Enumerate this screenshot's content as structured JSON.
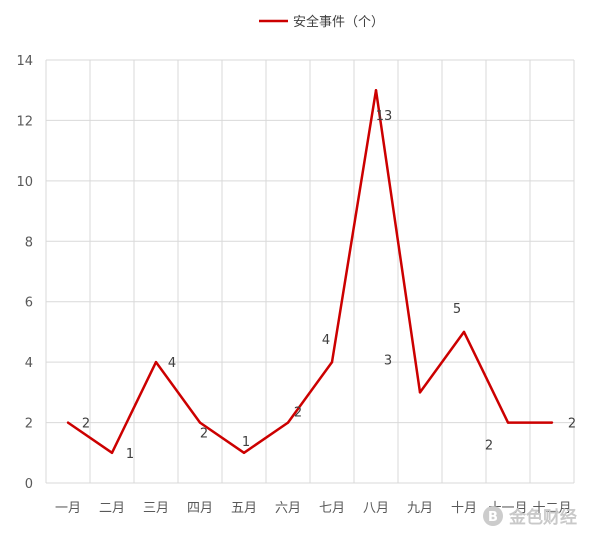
{
  "chart_data": {
    "type": "line",
    "categories": [
      "一月",
      "二月",
      "三月",
      "四月",
      "五月",
      "六月",
      "七月",
      "八月",
      "九月",
      "十月",
      "十一月",
      "十二月"
    ],
    "series": [
      {
        "name": "安全事件（个）",
        "values": [
          2,
          1,
          4,
          2,
          1,
          2,
          4,
          13,
          3,
          5,
          2,
          2
        ],
        "color": "#cc0000"
      }
    ],
    "ylim": [
      0,
      14
    ],
    "yticks": [
      0,
      2,
      4,
      6,
      8,
      10,
      12,
      14
    ],
    "grid": true,
    "legend_position": "top"
  },
  "watermark": {
    "text": "金色财经",
    "icon": "bitcoin-coin-icon",
    "color": "#c9c9c9"
  }
}
